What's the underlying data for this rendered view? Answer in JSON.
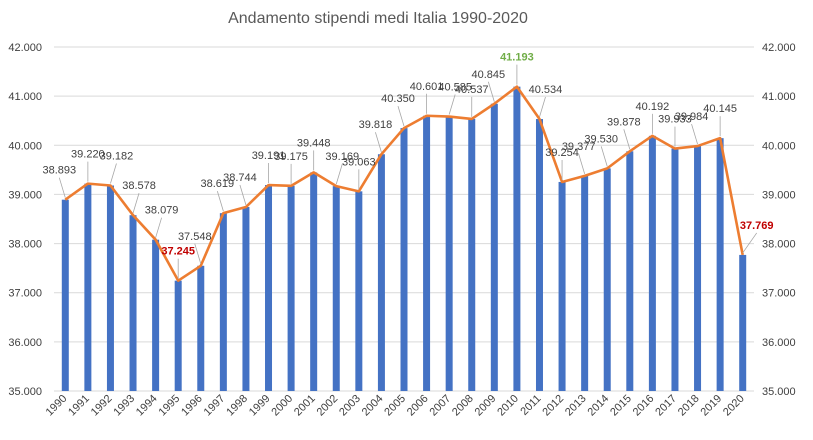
{
  "chart_data": {
    "type": "bar",
    "title": "Andamento stipendi medi Italia 1990-2020",
    "xlabel": "",
    "ylabel": "",
    "ylim": [
      35000,
      42000
    ],
    "yticks": [
      35000,
      36000,
      37000,
      38000,
      39000,
      40000,
      41000,
      42000
    ],
    "ytick_labels": [
      "35.000",
      "36.000",
      "37.000",
      "38.000",
      "39.000",
      "40.000",
      "41.000",
      "42.000"
    ],
    "secondary_y_axis": true,
    "grid": true,
    "categories": [
      "1990",
      "1991",
      "1992",
      "1993",
      "1994",
      "1995",
      "1996",
      "1997",
      "1998",
      "1999",
      "2000",
      "2001",
      "2002",
      "2003",
      "2004",
      "2005",
      "2006",
      "2007",
      "2008",
      "2009",
      "2010",
      "2011",
      "2012",
      "2013",
      "2014",
      "2015",
      "2016",
      "2017",
      "2018",
      "2019",
      "2020"
    ],
    "values": [
      38893,
      39220,
      39182,
      38578,
      38079,
      37245,
      37548,
      38619,
      38744,
      39191,
      39175,
      39448,
      39169,
      39063,
      39818,
      40350,
      40601,
      40585,
      40537,
      40845,
      41193,
      40534,
      39254,
      39377,
      39530,
      39878,
      40192,
      39933,
      39984,
      40145,
      37769
    ],
    "value_labels": [
      "38.893",
      "39.220",
      "39.182",
      "38.578",
      "38.079",
      "37.245",
      "37.548",
      "38.619",
      "38.744",
      "39.191",
      "39.175",
      "39.448",
      "39.169",
      "39.063",
      "39.818",
      "40.350",
      "40.601",
      "40.585",
      "40.537",
      "40.845",
      "41.193",
      "40.534",
      "39.254",
      "39.377",
      "39.530",
      "39.878",
      "40.192",
      "39.933",
      "39.984",
      "40.145",
      "37.769"
    ],
    "highlight_max": "41.193",
    "highlight_min": [
      "37.245",
      "37.769"
    ],
    "overlay_line": true,
    "colors": {
      "bar": "#4472c4",
      "line": "#ed7d31",
      "max_label": "#70ad47",
      "min_label": "#c00000",
      "grid": "#d9d9d9",
      "text": "#404040"
    }
  }
}
